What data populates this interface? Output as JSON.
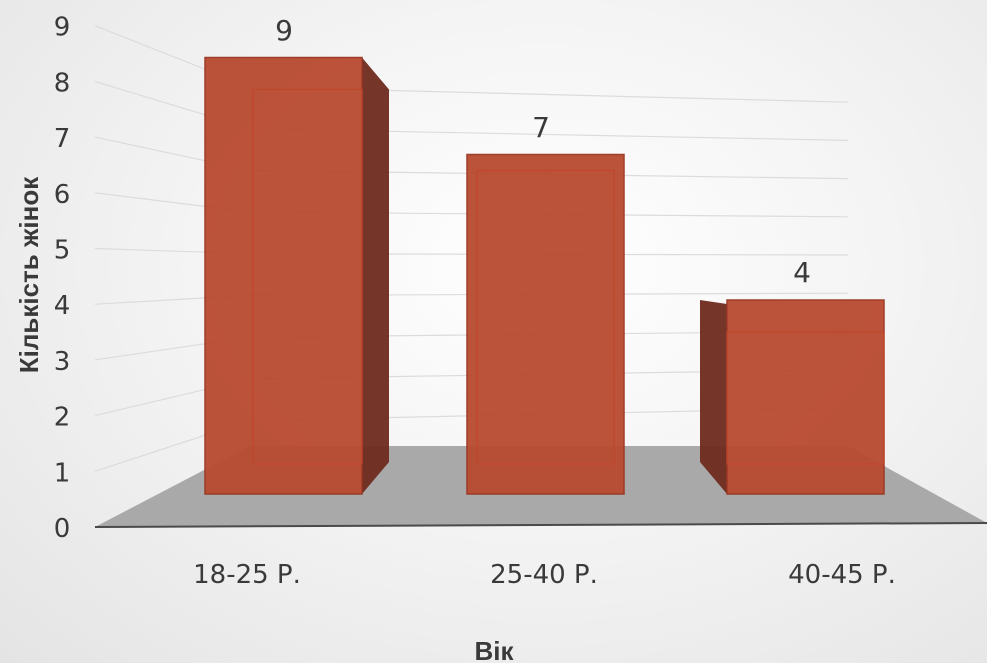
{
  "chart_data": {
    "type": "bar",
    "categories": [
      "18-25 Р.",
      "25-40 Р.",
      "40-45 Р."
    ],
    "values": [
      9,
      7,
      4
    ],
    "data_labels": [
      "9",
      "7",
      "4"
    ],
    "xlabel": "Вік",
    "ylabel": "Кількість жінок",
    "ylim": [
      0,
      9
    ],
    "yticks": [
      "0",
      "1",
      "2",
      "3",
      "4",
      "5",
      "6",
      "7",
      "8",
      "9"
    ],
    "grid": true,
    "style": "3d",
    "colors": {
      "bar": "#b84a30",
      "bar_side": "#6e2a1c",
      "floor": "#a9a9a9",
      "text": "#3a3a3a"
    }
  }
}
